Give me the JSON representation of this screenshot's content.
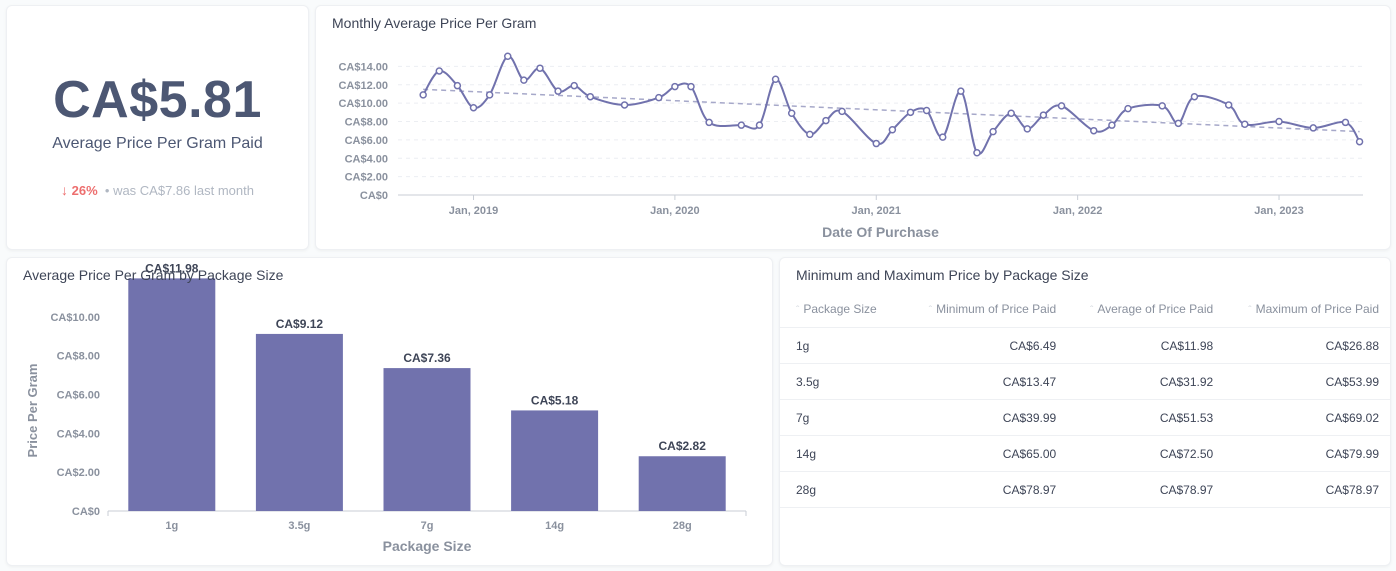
{
  "kpi": {
    "value": "CA$5.81",
    "label": "Average Price Per Gram Paid",
    "change_percent": "26%",
    "was_text": "was CA$7.86",
    "period": "last month"
  },
  "line_card": {
    "title": "Monthly Average Price Per Gram"
  },
  "bar_card": {
    "title": "Average Price Per Gram by Package Size"
  },
  "table_card": {
    "title": "Minimum and Maximum Price by Package Size",
    "columns": [
      "Package Size",
      "Minimum of Price Paid",
      "Average of Price Paid",
      "Maximum of Price Paid"
    ],
    "rows": [
      [
        "1g",
        "CA$6.49",
        "CA$11.98",
        "CA$26.88"
      ],
      [
        "3.5g",
        "CA$13.47",
        "CA$31.92",
        "CA$53.99"
      ],
      [
        "7g",
        "CA$39.99",
        "CA$51.53",
        "CA$69.02"
      ],
      [
        "14g",
        "CA$65.00",
        "CA$72.50",
        "CA$79.99"
      ],
      [
        "28g",
        "CA$78.97",
        "CA$78.97",
        "CA$78.97"
      ]
    ]
  },
  "colors": {
    "accent": "#7172ad",
    "trend": "#a6a8c9",
    "negative": "#ed6e6e"
  },
  "chart_data": [
    {
      "type": "line",
      "title": "Monthly Average Price Per Gram",
      "xlabel": "Date Of Purchase",
      "ylabel": "",
      "ylim": [
        0,
        16
      ],
      "xlim": [
        2018.625,
        2023.417
      ],
      "yticks": [
        0,
        2,
        4,
        6,
        8,
        10,
        12,
        14
      ],
      "ytick_labels": [
        "CA$0",
        "CA$2.00",
        "CA$4.00",
        "CA$6.00",
        "CA$8.00",
        "CA$10.00",
        "CA$12.00",
        "CA$14.00"
      ],
      "xticks": [
        2019,
        2020,
        2021,
        2022,
        2023
      ],
      "xtick_labels": [
        "Jan, 2019",
        "Jan, 2020",
        "Jan, 2021",
        "Jan, 2022",
        "Jan, 2023"
      ],
      "trendline": {
        "from": [
          2018.75,
          11.5
        ],
        "to": [
          2023.4,
          6.9
        ]
      },
      "points": [
        [
          2018.75,
          10.9
        ],
        [
          2018.83,
          13.5
        ],
        [
          2018.92,
          11.9
        ],
        [
          2019.0,
          9.5
        ],
        [
          2019.08,
          10.9
        ],
        [
          2019.17,
          15.1
        ],
        [
          2019.25,
          12.5
        ],
        [
          2019.33,
          13.8
        ],
        [
          2019.42,
          11.3
        ],
        [
          2019.5,
          11.9
        ],
        [
          2019.58,
          10.7
        ],
        [
          2019.75,
          9.8
        ],
        [
          2019.92,
          10.6
        ],
        [
          2020.0,
          11.8
        ],
        [
          2020.08,
          11.8
        ],
        [
          2020.17,
          7.9
        ],
        [
          2020.33,
          7.6
        ],
        [
          2020.42,
          7.6
        ],
        [
          2020.5,
          12.6
        ],
        [
          2020.58,
          8.9
        ],
        [
          2020.67,
          6.6
        ],
        [
          2020.75,
          8.1
        ],
        [
          2020.83,
          9.1
        ],
        [
          2021.0,
          5.6
        ],
        [
          2021.08,
          7.1
        ],
        [
          2021.17,
          9.0
        ],
        [
          2021.25,
          9.2
        ],
        [
          2021.33,
          6.3
        ],
        [
          2021.42,
          11.3
        ],
        [
          2021.5,
          4.6
        ],
        [
          2021.58,
          6.9
        ],
        [
          2021.67,
          8.9
        ],
        [
          2021.75,
          7.2
        ],
        [
          2021.83,
          8.7
        ],
        [
          2021.92,
          9.7
        ],
        [
          2022.08,
          7.0
        ],
        [
          2022.17,
          7.6
        ],
        [
          2022.25,
          9.4
        ],
        [
          2022.42,
          9.7
        ],
        [
          2022.5,
          7.8
        ],
        [
          2022.58,
          10.7
        ],
        [
          2022.75,
          9.8
        ],
        [
          2022.83,
          7.7
        ],
        [
          2023.0,
          8.0
        ],
        [
          2023.17,
          7.3
        ],
        [
          2023.33,
          7.9
        ],
        [
          2023.4,
          5.8
        ]
      ]
    },
    {
      "type": "bar",
      "title": "Average Price Per Gram by Package Size",
      "xlabel": "Package Size",
      "ylabel": "Price Per Gram",
      "ylim": [
        0,
        12
      ],
      "yticks": [
        0,
        2,
        4,
        6,
        8,
        10
      ],
      "ytick_labels": [
        "CA$0",
        "CA$2.00",
        "CA$4.00",
        "CA$6.00",
        "CA$8.00",
        "CA$10.00"
      ],
      "categories": [
        "1g",
        "3.5g",
        "7g",
        "14g",
        "28g"
      ],
      "values": [
        11.98,
        9.12,
        7.36,
        5.18,
        2.82
      ],
      "data_labels": [
        "CA$11.98",
        "CA$9.12",
        "CA$7.36",
        "CA$5.18",
        "CA$2.82"
      ]
    }
  ]
}
